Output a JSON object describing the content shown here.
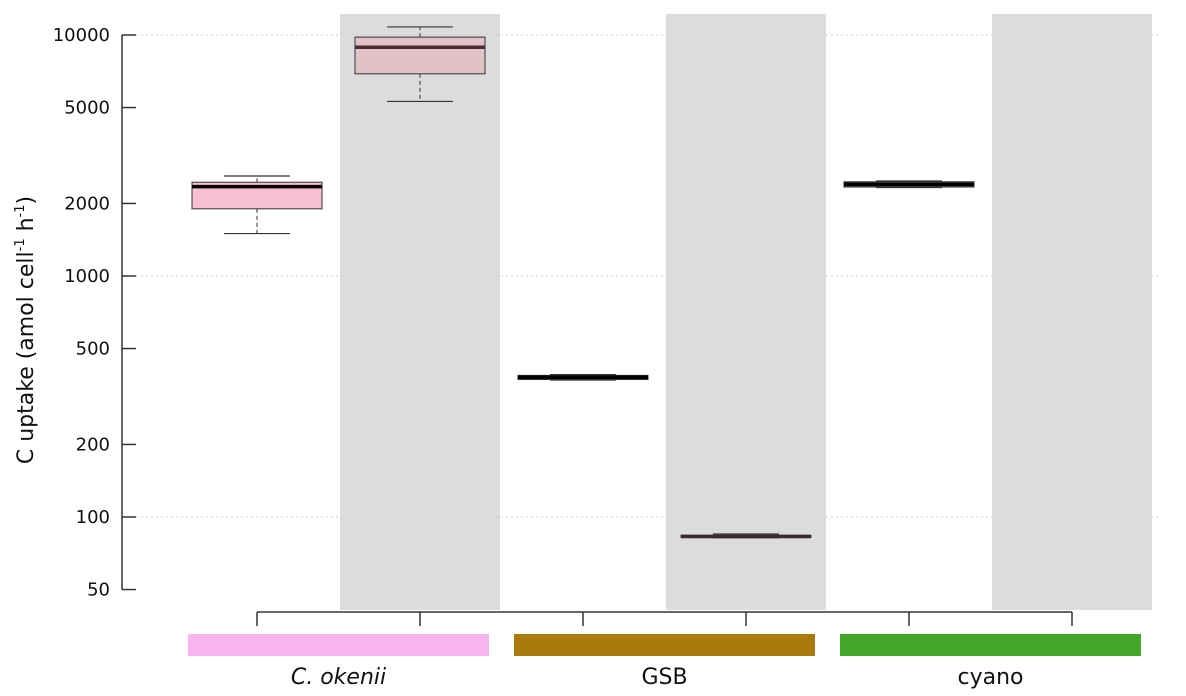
{
  "chart_data": {
    "type": "box",
    "ylabel_main": "C uptake (amol cell",
    "ylabel_sup1": "-1",
    "ylabel_mid": " h",
    "ylabel_sup2": "-1",
    "ylabel_end": ")",
    "y_scale": "log",
    "ylim": [
      50,
      12000
    ],
    "yticks": [
      50,
      100,
      200,
      500,
      1000,
      2000,
      5000,
      10000
    ],
    "ytick_labels": [
      "50",
      "100",
      "200",
      "500",
      "1000",
      "2000",
      "5000",
      "10000"
    ],
    "grid_lines_at": [
      100,
      1000,
      10000
    ],
    "shaded_positions": [
      2,
      4,
      6
    ],
    "shade_color": "#dcdcde",
    "groups": [
      {
        "label": "C. okenii",
        "italic": true,
        "color": "#f7b4f1",
        "positions": [
          1,
          2
        ]
      },
      {
        "label": "GSB",
        "italic": false,
        "color": "#a97a0c",
        "positions": [
          3,
          4
        ]
      },
      {
        "label": "cyano",
        "italic": false,
        "color": "#43a62b",
        "positions": [
          5,
          6
        ]
      }
    ],
    "boxes": [
      {
        "position": 1,
        "whisker_low": 1500,
        "q1": 1900,
        "median": 2350,
        "q3": 2450,
        "whisker_high": 2600,
        "fill": "#f7bfcf",
        "median_color": "#000000"
      },
      {
        "position": 2,
        "whisker_low": 5300,
        "q1": 6900,
        "median": 8900,
        "q3": 9800,
        "whisker_high": 10800,
        "fill": "#e3c2c7",
        "median_color": "#4a2a34"
      },
      {
        "position": 3,
        "whisker_low": 370,
        "q1": 372,
        "median": 380,
        "q3": 387,
        "whisker_high": 390,
        "fill": "#555555",
        "median_color": "#000000"
      },
      {
        "position": 4,
        "whisker_low": 82,
        "q1": 82.5,
        "median": 83,
        "q3": 84,
        "whisker_high": 85,
        "fill": "#777777",
        "median_color": "#3a2a2a"
      },
      {
        "position": 5,
        "whisker_low": 2330,
        "q1": 2340,
        "median": 2400,
        "q3": 2460,
        "whisker_high": 2480,
        "fill": "#555555",
        "median_color": "#000000"
      }
    ]
  }
}
